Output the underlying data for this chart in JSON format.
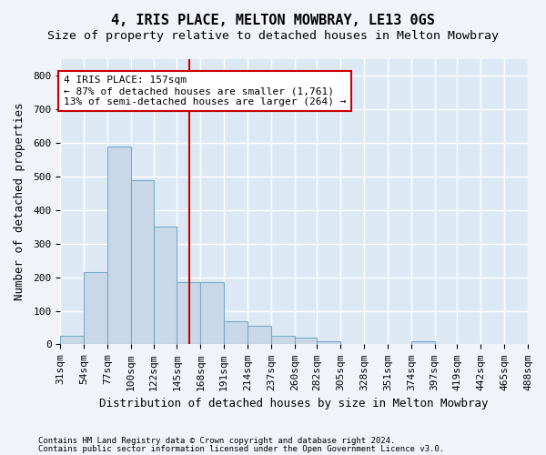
{
  "title": "4, IRIS PLACE, MELTON MOWBRAY, LE13 0GS",
  "subtitle": "Size of property relative to detached houses in Melton Mowbray",
  "xlabel": "Distribution of detached houses by size in Melton Mowbray",
  "ylabel": "Number of detached properties",
  "footer_line1": "Contains HM Land Registry data © Crown copyright and database right 2024.",
  "footer_line2": "Contains public sector information licensed under the Open Government Licence v3.0.",
  "bar_edges": [
    31,
    54,
    77,
    100,
    122,
    145,
    168,
    191,
    214,
    237,
    260,
    282,
    305,
    328,
    351,
    374,
    397,
    419,
    442,
    465,
    488
  ],
  "bar_heights": [
    25,
    215,
    590,
    490,
    350,
    185,
    185,
    70,
    55,
    25,
    20,
    10,
    0,
    0,
    0,
    10,
    0,
    0,
    0,
    0
  ],
  "bar_color": "#c8d8e8",
  "bar_edge_color": "#7aaac8",
  "property_size": 157,
  "vline_color": "#cc0000",
  "annotation_text": "4 IRIS PLACE: 157sqm\n← 87% of detached houses are smaller (1,761)\n13% of semi-detached houses are larger (264) →",
  "annotation_box_color": "#ffffff",
  "annotation_box_edge_color": "#cc0000",
  "ylim": [
    0,
    850
  ],
  "yticks": [
    0,
    100,
    200,
    300,
    400,
    500,
    600,
    700,
    800
  ],
  "plot_background": "#dce9f5",
  "fig_background": "#f0f4f8",
  "grid_color": "#ffffff",
  "title_fontsize": 11,
  "subtitle_fontsize": 9.5,
  "xlabel_fontsize": 9,
  "ylabel_fontsize": 9,
  "tick_fontsize": 8,
  "annotation_fontsize": 8
}
